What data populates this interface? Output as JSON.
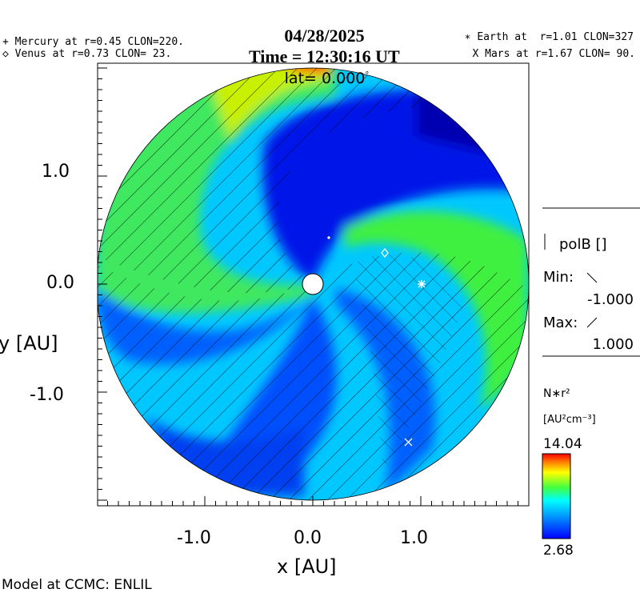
{
  "header": {
    "date": "04/28/2025",
    "time_prefix": "Time = ",
    "time": "12:30:16 UT",
    "lat_label": "lat=",
    "lat_value": "0.000"
  },
  "planets": {
    "mercury": "+ Mercury at r=0.45 CLON=220.",
    "venus": "◇ Venus at r=0.73 CLON= 23.",
    "earth": "∗ Earth at  r=1.01 CLON=327",
    "mars": "X Mars at r=1.67 CLON= 90."
  },
  "footer": "Model at CCMC: ENLIL",
  "polarity": {
    "label": "polB []",
    "min_label": "Min:",
    "min_value": "-1.000",
    "max_label": "Max:",
    "max_value": "1.000"
  },
  "colorbar": {
    "quantity": "N∗r²",
    "units": "[AU²cm⁻³]",
    "max": "14.04",
    "min": "2.68"
  },
  "colors": {
    "min": "#0000ff",
    "mid": "#00ffff",
    "max": "#ff0000"
  },
  "chart_data": {
    "type": "heatmap",
    "title": "04/28/2025 Time = 12:30:16 UT lat= 0.000°",
    "xlabel": "x [AU]",
    "ylabel": "y [AU]",
    "xlim": [
      -2.0,
      2.0
    ],
    "ylim": [
      -2.0,
      2.0
    ],
    "x_ticks": [
      "-1.0",
      "0.0",
      "1.0"
    ],
    "y_ticks": [
      "1.0",
      "0.0",
      "-1.0"
    ],
    "value_range": [
      2.68,
      14.04
    ],
    "planet_positions": [
      {
        "name": "Mercury",
        "r": 0.45,
        "clon": 220
      },
      {
        "name": "Venus",
        "r": 0.73,
        "clon": 23
      },
      {
        "name": "Earth",
        "r": 1.01,
        "clon": 327
      },
      {
        "name": "Mars",
        "r": 1.67,
        "clon": 90
      }
    ]
  }
}
